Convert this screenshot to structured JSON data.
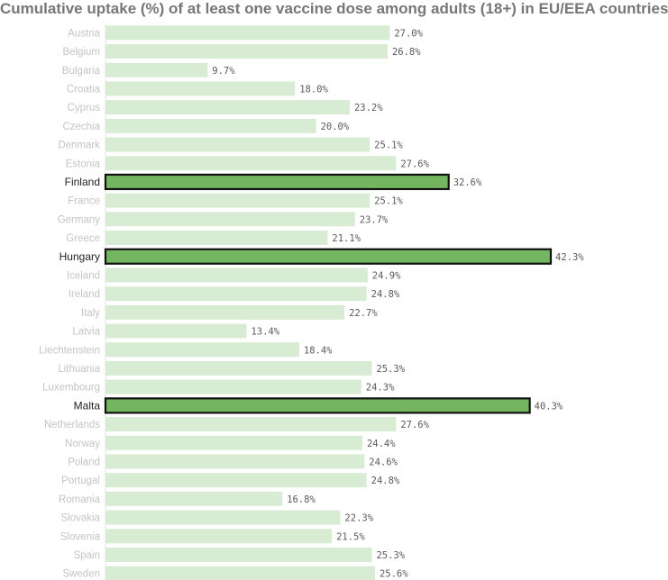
{
  "chart_data": {
    "type": "bar",
    "orientation": "horizontal",
    "title": "Cumulative uptake (%) of at least one vaccine dose among adults (18+) in EU/EEA countries",
    "categories": [
      "Austria",
      "Belgium",
      "Bulgaria",
      "Croatia",
      "Cyprus",
      "Czechia",
      "Denmark",
      "Estonia",
      "Finland",
      "France",
      "Germany",
      "Greece",
      "Hungary",
      "Iceland",
      "Ireland",
      "Italy",
      "Latvia",
      "Liechtenstein",
      "Lithuania",
      "Luxembourg",
      "Malta",
      "Netherlands",
      "Norway",
      "Poland",
      "Portugal",
      "Romania",
      "Slovakia",
      "Slovenia",
      "Spain",
      "Sweden"
    ],
    "values": [
      27.0,
      26.8,
      9.7,
      18.0,
      23.2,
      20.0,
      25.1,
      27.6,
      32.6,
      25.1,
      23.7,
      21.1,
      42.3,
      24.9,
      24.8,
      22.7,
      13.4,
      18.4,
      25.3,
      24.3,
      40.3,
      27.6,
      24.4,
      24.6,
      24.8,
      16.8,
      22.3,
      21.5,
      25.3,
      25.6
    ],
    "value_labels": [
      "27.0%",
      "26.8%",
      "9.7%",
      "18.0%",
      "23.2%",
      "20.0%",
      "25.1%",
      "27.6%",
      "32.6%",
      "25.1%",
      "23.7%",
      "21.1%",
      "42.3%",
      "24.9%",
      "24.8%",
      "22.7%",
      "13.4%",
      "18.4%",
      "25.3%",
      "24.3%",
      "40.3%",
      "27.6%",
      "24.4%",
      "24.6%",
      "24.8%",
      "16.8%",
      "22.3%",
      "21.5%",
      "25.3%",
      "25.6%"
    ],
    "highlighted": [
      "Finland",
      "Hungary",
      "Malta"
    ],
    "xlim": [
      0,
      42.3
    ],
    "grid": false,
    "colors": {
      "bar": "#d8ebd3",
      "highlight_bar": "#74b55f",
      "highlight_border": "#111111"
    }
  }
}
